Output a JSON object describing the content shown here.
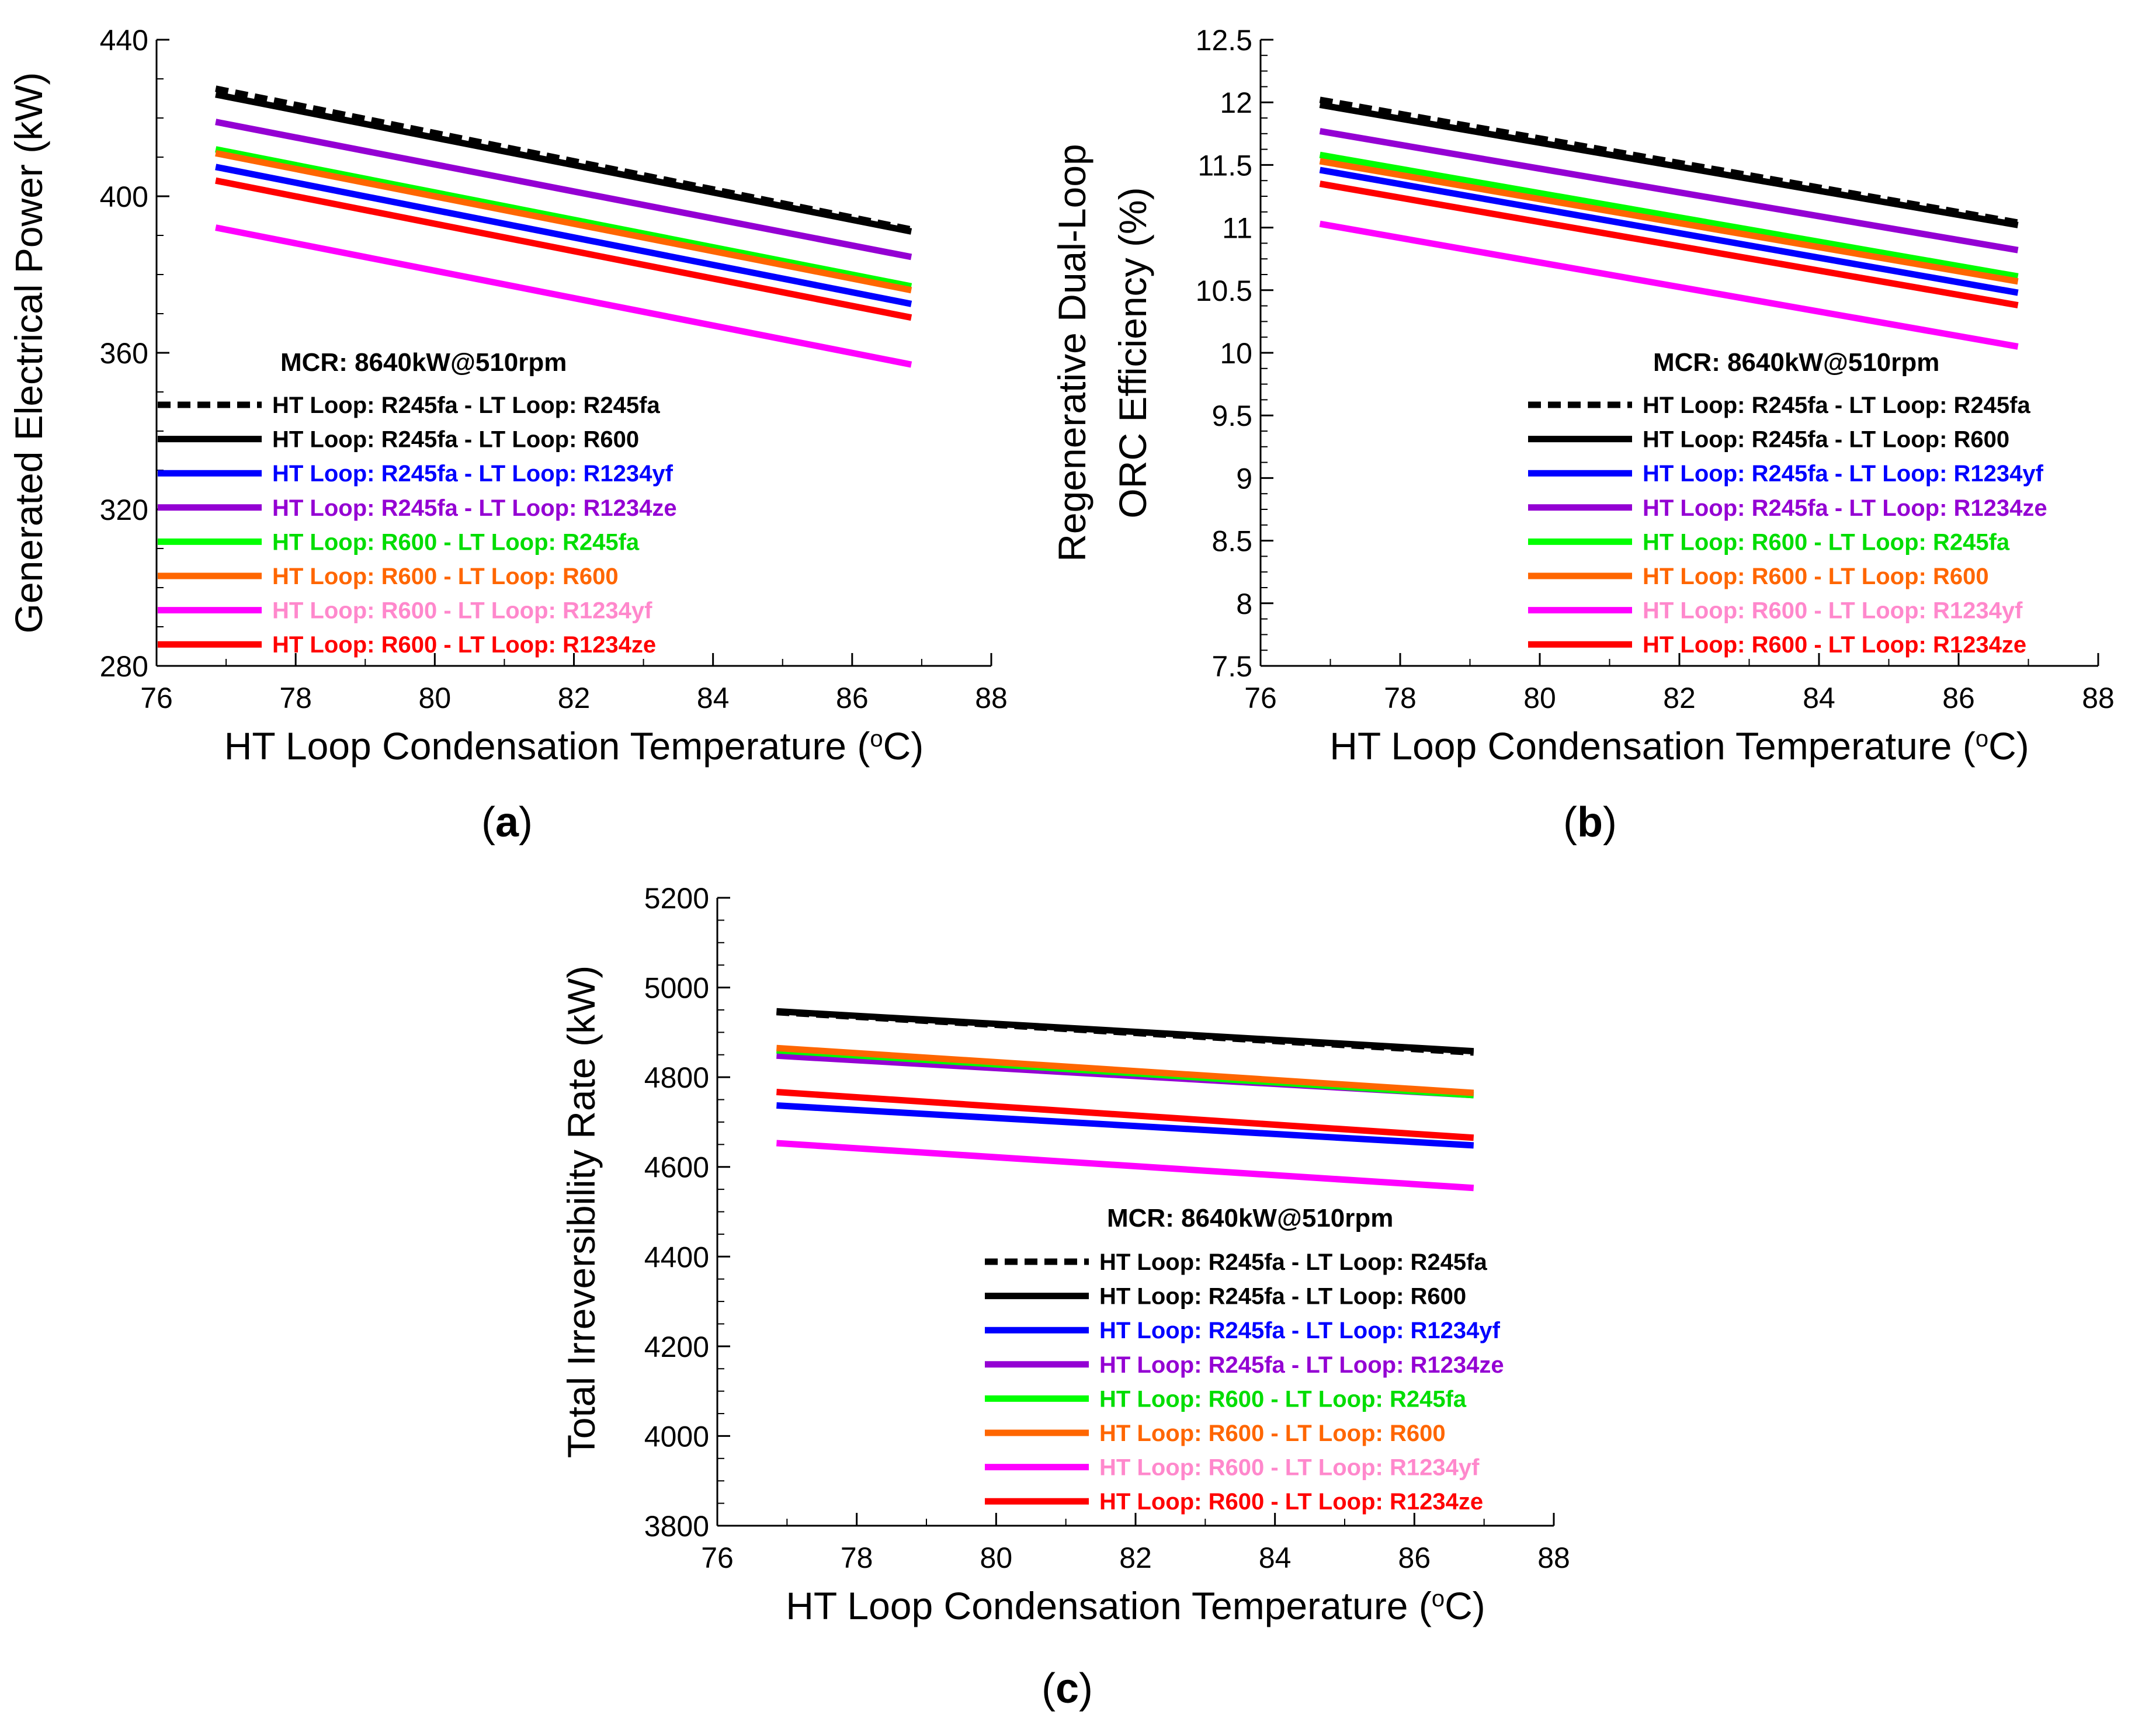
{
  "legend_title": "MCR: 8640kW@510rpm",
  "series_styles": [
    {
      "label": "HT Loop: R245fa - LT Loop: R245fa",
      "color": "#000000",
      "text_color": "#000000",
      "dashed": true
    },
    {
      "label": "HT Loop: R245fa - LT Loop: R600",
      "color": "#000000",
      "text_color": "#000000",
      "dashed": false
    },
    {
      "label": "HT Loop: R245fa - LT Loop: R1234yf",
      "color": "#0000ff",
      "text_color": "#0000ff",
      "dashed": false
    },
    {
      "label": "HT Loop: R245fa - LT Loop: R1234ze",
      "color": "#9400d3",
      "text_color": "#9400d3",
      "dashed": false
    },
    {
      "label": "HT Loop: R600 - LT Loop: R245fa",
      "color": "#00ff00",
      "text_color": "#00dd00",
      "dashed": false
    },
    {
      "label": "HT Loop: R600 - LT Loop: R600",
      "color": "#ff6600",
      "text_color": "#ff6600",
      "dashed": false
    },
    {
      "label": "HT Loop: R600 - LT Loop: R1234yf",
      "color": "#ff00ff",
      "text_color": "#ff88cc",
      "dashed": false
    },
    {
      "label": "HT Loop: R600 - LT Loop: R1234ze",
      "color": "#ff0000",
      "text_color": "#ff0000",
      "dashed": false
    }
  ],
  "chart_data": [
    {
      "panel_label": "(a)",
      "type": "line",
      "xlabel": "HT Loop Condensation Temperature (",
      "xlabel_unit": "oC)",
      "ylabel": "Generated Electrical Power (kW)",
      "ylabel_line2": "",
      "xlim": [
        76,
        88
      ],
      "ylim": [
        280,
        440
      ],
      "xticks": [
        76,
        78,
        80,
        82,
        84,
        86,
        88
      ],
      "yticks": [
        "280",
        "320",
        "360",
        "400",
        "440"
      ],
      "ytick_values": [
        280,
        320,
        360,
        400,
        440
      ],
      "x": [
        76.85,
        86.85
      ],
      "series": [
        {
          "name": "HT Loop: R245fa - LT Loop: R245fa",
          "values": [
            427.5,
            391.5
          ]
        },
        {
          "name": "HT Loop: R245fa - LT Loop: R600",
          "values": [
            426,
            391
          ]
        },
        {
          "name": "HT Loop: R245fa - LT Loop: R1234yf",
          "values": [
            407.5,
            372.5
          ]
        },
        {
          "name": "HT Loop: R245fa - LT Loop: R1234ze",
          "values": [
            419,
            384.5
          ]
        },
        {
          "name": "HT Loop: R600 - LT Loop: R245fa",
          "values": [
            412,
            377
          ]
        },
        {
          "name": "HT Loop: R600 - LT Loop: R600",
          "values": [
            411,
            376
          ]
        },
        {
          "name": "HT Loop: R600 - LT Loop: R1234yf",
          "values": [
            392,
            357
          ]
        },
        {
          "name": "HT Loop: R600 - LT Loop: R1234ze",
          "values": [
            404,
            369
          ]
        }
      ]
    },
    {
      "panel_label": "(b)",
      "type": "line",
      "xlabel": "HT Loop Condensation Temperature (",
      "xlabel_unit": "oC)",
      "ylabel": "Regenerative Dual-Loop",
      "ylabel_line2": "ORC Efficiency (%)",
      "xlim": [
        76,
        88
      ],
      "ylim": [
        7.5,
        12.5
      ],
      "xticks": [
        76,
        78,
        80,
        82,
        84,
        86,
        88
      ],
      "yticks": [
        "7.5",
        "8",
        "8.5",
        "9",
        "9.5",
        "10",
        "10.5",
        "11",
        "11.5",
        "12",
        "12.5"
      ],
      "ytick_values": [
        7.5,
        8,
        8.5,
        9,
        9.5,
        10,
        10.5,
        11,
        11.5,
        12,
        12.5
      ],
      "x": [
        76.85,
        86.85
      ],
      "series": [
        {
          "name": "HT Loop: R245fa - LT Loop: R245fa",
          "values": [
            12.02,
            11.04
          ]
        },
        {
          "name": "HT Loop: R245fa - LT Loop: R600",
          "values": [
            11.98,
            11.02
          ]
        },
        {
          "name": "HT Loop: R245fa - LT Loop: R1234yf",
          "values": [
            11.46,
            10.48
          ]
        },
        {
          "name": "HT Loop: R245fa - LT Loop: R1234ze",
          "values": [
            11.77,
            10.82
          ]
        },
        {
          "name": "HT Loop: R600 - LT Loop: R245fa",
          "values": [
            11.58,
            10.61
          ]
        },
        {
          "name": "HT Loop: R600 - LT Loop: R600",
          "values": [
            11.53,
            10.57
          ]
        },
        {
          "name": "HT Loop: R600 - LT Loop: R1234yf",
          "values": [
            11.03,
            10.05
          ]
        },
        {
          "name": "HT Loop: R600 - LT Loop: R1234ze",
          "values": [
            11.35,
            10.38
          ]
        }
      ]
    },
    {
      "panel_label": "(c)",
      "type": "line",
      "xlabel": "HT Loop Condensation Temperature (",
      "xlabel_unit": "oC)",
      "ylabel": "Total Irreversibility Rate (kW)",
      "ylabel_line2": "",
      "xlim": [
        76,
        88
      ],
      "ylim": [
        3800,
        5200
      ],
      "xticks": [
        76,
        78,
        80,
        82,
        84,
        86,
        88
      ],
      "yticks": [
        "3800",
        "4000",
        "4200",
        "4400",
        "4600",
        "4800",
        "5000",
        "5200"
      ],
      "ytick_values": [
        3800,
        4000,
        4200,
        4400,
        4600,
        4800,
        5000,
        5200
      ],
      "x": [
        76.85,
        86.85
      ],
      "series": [
        {
          "name": "HT Loop: R245fa - LT Loop: R245fa",
          "values": [
            4945,
            4855
          ]
        },
        {
          "name": "HT Loop: R245fa - LT Loop: R600",
          "values": [
            4947,
            4858
          ]
        },
        {
          "name": "HT Loop: R245fa - LT Loop: R1234yf",
          "values": [
            4737,
            4648
          ]
        },
        {
          "name": "HT Loop: R245fa - LT Loop: R1234ze",
          "values": [
            4848,
            4760
          ]
        },
        {
          "name": "HT Loop: R600 - LT Loop: R245fa",
          "values": [
            4860,
            4760
          ]
        },
        {
          "name": "HT Loop: R600 - LT Loop: R600",
          "values": [
            4865,
            4765
          ]
        },
        {
          "name": "HT Loop: R600 - LT Loop: R1234yf",
          "values": [
            4653,
            4553
          ]
        },
        {
          "name": "HT Loop: R600 - LT Loop: R1234ze",
          "values": [
            4767,
            4665
          ]
        }
      ]
    }
  ]
}
